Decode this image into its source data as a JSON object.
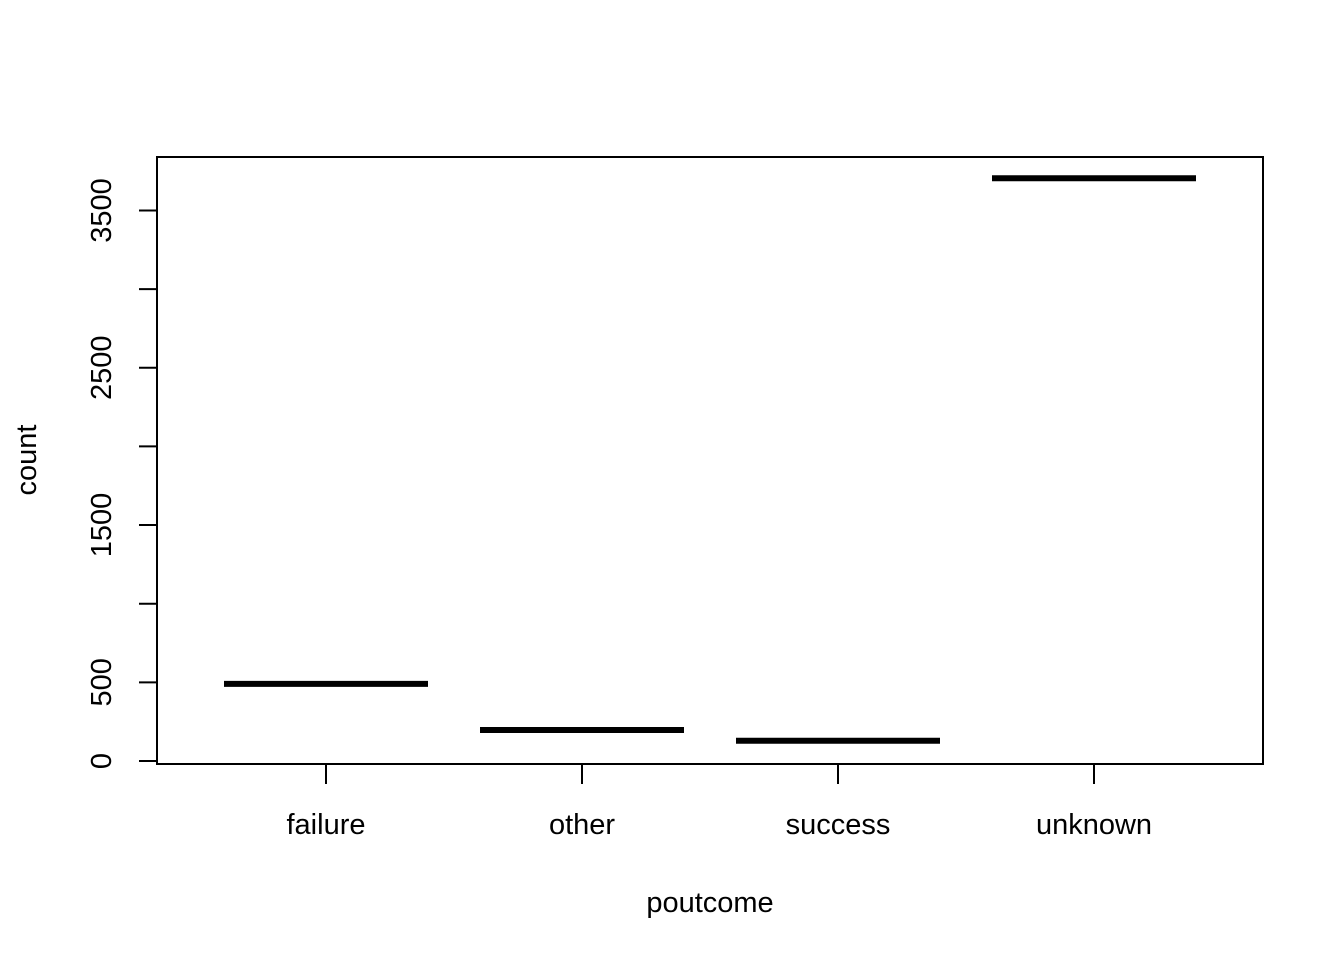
{
  "chart_data": {
    "type": "line",
    "xlabel": "poutcome",
    "ylabel": "count",
    "categories": [
      "failure",
      "other",
      "success",
      "unknown"
    ],
    "values": [
      490,
      197,
      129,
      3705
    ],
    "yticks": [
      0,
      500,
      1000,
      1500,
      2000,
      2500,
      3000,
      3500
    ],
    "ytick_labels": [
      "0",
      "500",
      "",
      "1500",
      "",
      "2500",
      "",
      "3500"
    ],
    "ylim": [
      0,
      3850
    ],
    "grid": false,
    "colors": {
      "line": "#000000",
      "axis": "#000000",
      "background": "#ffffff"
    }
  }
}
